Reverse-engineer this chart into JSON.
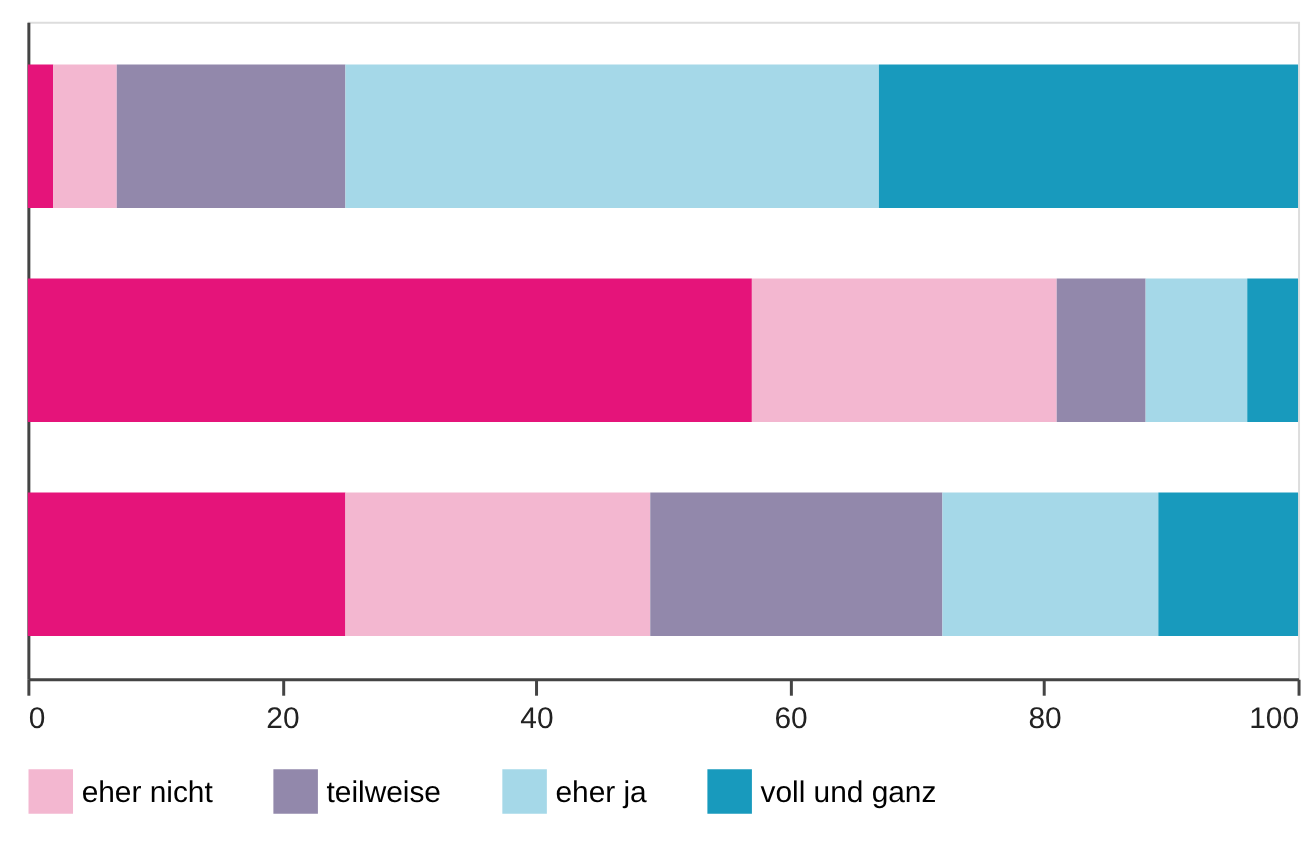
{
  "chart_data": {
    "type": "bar",
    "orientation": "horizontal",
    "stacked": true,
    "categories": [
      null,
      null,
      null
    ],
    "series": [
      {
        "color": "#e5147a",
        "values": [
          2,
          57,
          25
        ]
      },
      {
        "name": "eher nicht",
        "color": "#f3b7d0",
        "values": [
          5,
          24,
          24
        ]
      },
      {
        "name": "teilweise",
        "color": "#9288ab",
        "values": [
          18,
          7,
          23
        ]
      },
      {
        "name": "eher ja",
        "color": "#a5d8e8",
        "values": [
          42,
          8,
          17
        ]
      },
      {
        "name": "voll und ganz",
        "color": "#189abd",
        "values": [
          33,
          4,
          11
        ]
      }
    ],
    "xlim": [
      0,
      100
    ],
    "xticks": [
      0,
      20,
      40,
      60,
      80,
      100
    ],
    "grid": false,
    "legend": "bottom"
  }
}
